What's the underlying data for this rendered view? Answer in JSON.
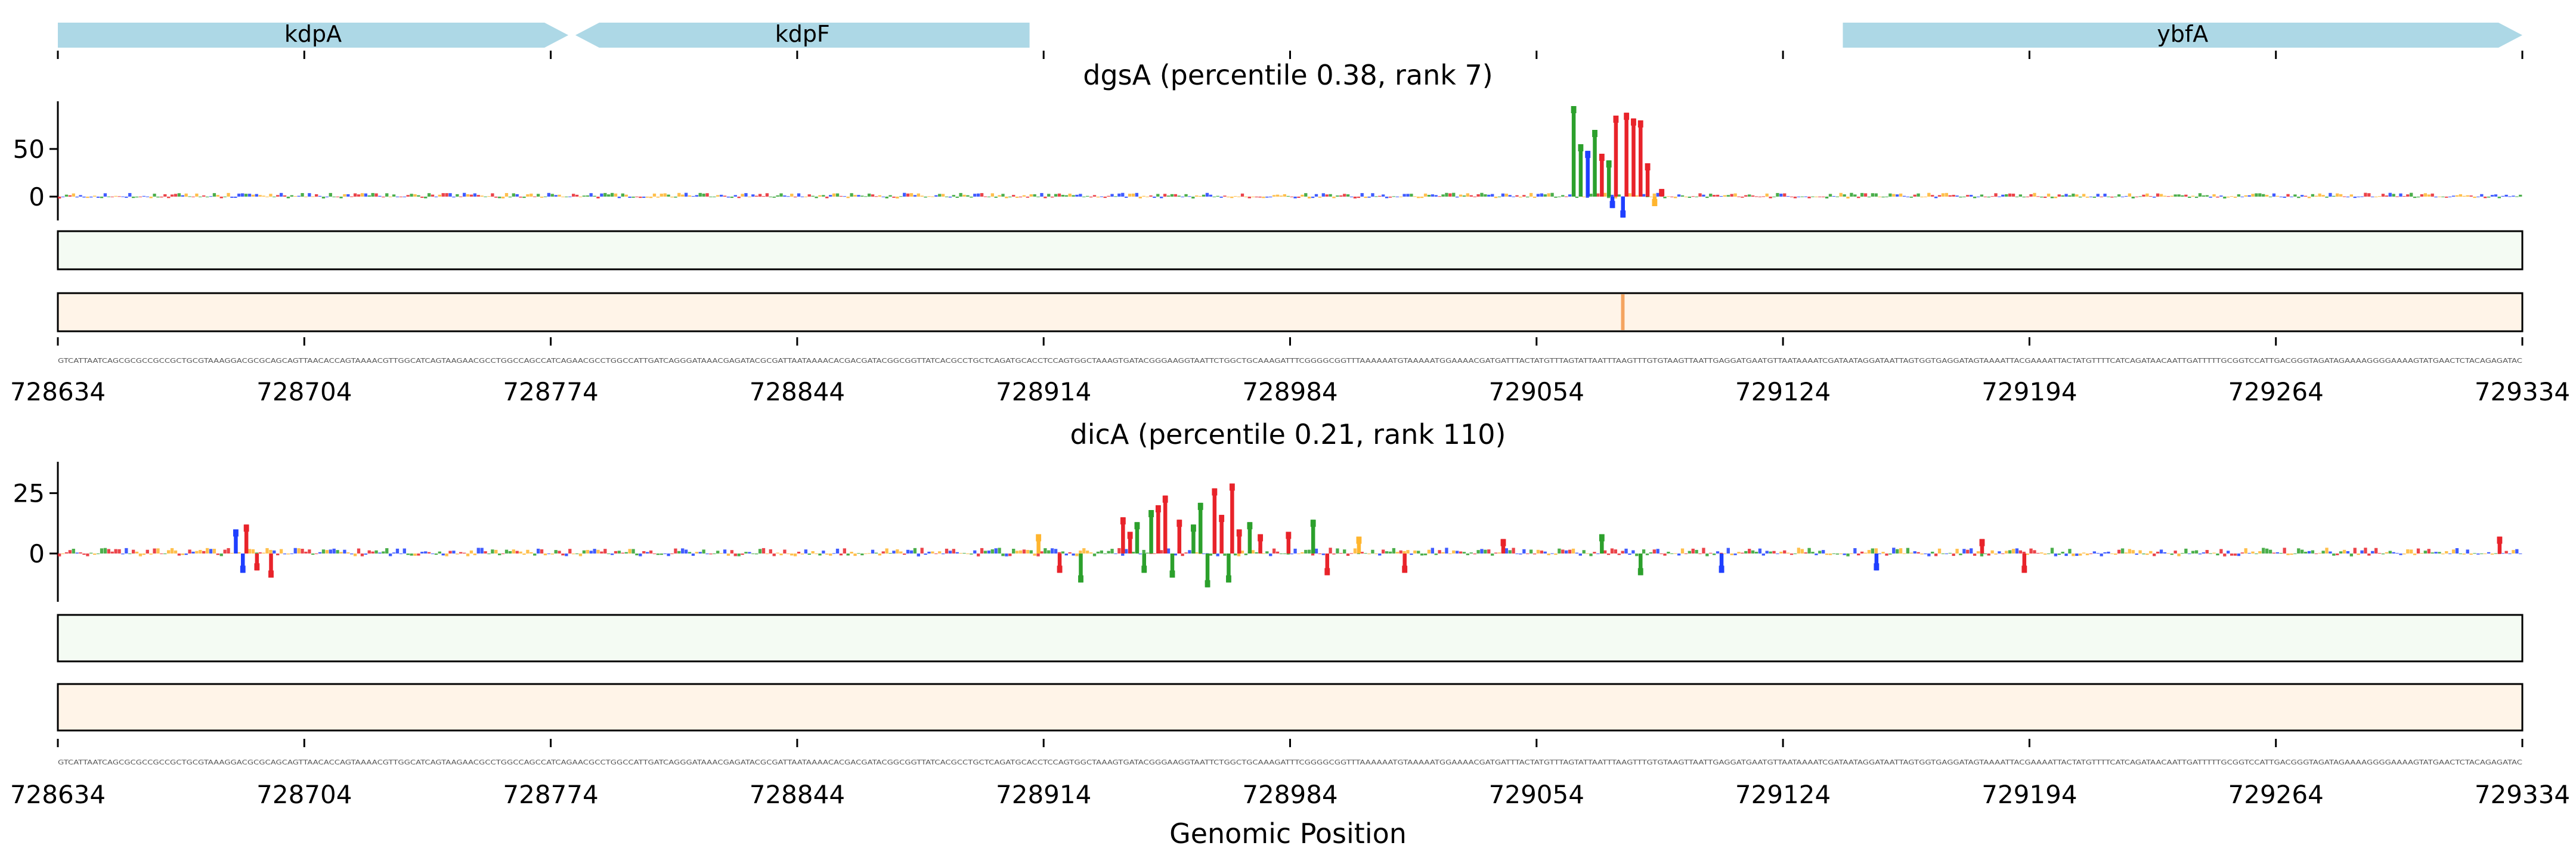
{
  "genes": [
    {
      "name": "kdpA",
      "start": 728634,
      "end": 728779,
      "strand": "+"
    },
    {
      "name": "kdpF",
      "start": 728781,
      "end": 728910,
      "strand": "-"
    },
    {
      "name": "ybfA",
      "start": 729141,
      "end": 729334,
      "strand": "+"
    }
  ],
  "gene_track_ticks": [
    728634,
    728704,
    728774,
    728844,
    728914,
    728984,
    729054,
    729124,
    729194,
    729264,
    729334
  ],
  "xlabel": "Genomic Position",
  "colors": {
    "gene": "#add8e6",
    "base_A": "#2ca02c",
    "base_C": "#1f3fff",
    "base_G": "#ffb52e",
    "base_T": "#e8232a",
    "track1_bg": "#f4fbf3",
    "track2_bg": "#fff4e8",
    "track2_mark": "#f4a460"
  },
  "sequence_strip_text": "GTCATTAATCAGCGCGCCGCCGCTGCGTAAAGGACGCGCAGCAGTTAACACCAGTAAAACGTTGGCATCAGTAAGAACGCCTGGCCAGCCATCAGAACGCCTGGCCATTGATCAGGGATAAACGAGATACGCGATTAATAAAACACGACGATACGGCGGTTATCACGCCTGCTCAGATGCACCTCCAGTGGCTAAAGTGATACGGGAAGGTAATTCTGGCTGCAAAGATTTCGGGGCGGTTTAAAAAATGTAAAAATGGAAAACGATGATTTACTATGTTTAGTATTAATTTAAGTTTGTGTAAGTTAATTGAGGATGAATGTTAATAAAATCGATAATAGGATAATTAGTGGTGAGGATAGTAAAATTACGAAAATTACTATGTTTTCATCAGATAACAATTGATTTTTGCGGTCCATTGACGGGTAGATAGAAAAGGGGAAAAGTATGAACTCTACAGAGATAC",
  "chart_data": [
    {
      "type": "logo",
      "title": "dgsA (percentile 0.38, rank 7)",
      "xlabel": "Genomic Position",
      "xlim": [
        728634,
        729334
      ],
      "ylim": [
        -25,
        100
      ],
      "yticks": [
        0,
        50
      ],
      "xticks": [
        728634,
        728704,
        728774,
        728844,
        728914,
        728984,
        729054,
        729124,
        729194,
        729264,
        729334
      ],
      "peaks": [
        {
          "pos": 729064,
          "value": 95,
          "base": "A"
        },
        {
          "pos": 729066,
          "value": 55,
          "base": "A"
        },
        {
          "pos": 729068,
          "value": 48,
          "base": "C"
        },
        {
          "pos": 729070,
          "value": 70,
          "base": "A"
        },
        {
          "pos": 729072,
          "value": 45,
          "base": "T"
        },
        {
          "pos": 729074,
          "value": 38,
          "base": "A"
        },
        {
          "pos": 729075,
          "value": -12,
          "base": "C"
        },
        {
          "pos": 729076,
          "value": 85,
          "base": "T"
        },
        {
          "pos": 729078,
          "value": -22,
          "base": "C"
        },
        {
          "pos": 729079,
          "value": 88,
          "base": "T"
        },
        {
          "pos": 729081,
          "value": 82,
          "base": "T"
        },
        {
          "pos": 729083,
          "value": 80,
          "base": "T"
        },
        {
          "pos": 729085,
          "value": 35,
          "base": "T"
        },
        {
          "pos": 729087,
          "value": -10,
          "base": "G"
        },
        {
          "pos": 729089,
          "value": 8,
          "base": "T"
        }
      ],
      "background_amplitude": 5,
      "track2_marks": [
        {
          "pos": 729078,
          "intensity": 1.0
        }
      ]
    },
    {
      "type": "logo",
      "title": "dicA (percentile 0.21, rank 110)",
      "xlabel": "Genomic Position",
      "xlim": [
        728634,
        729334
      ],
      "ylim": [
        -20,
        38
      ],
      "yticks": [
        0,
        25
      ],
      "xticks": [
        728634,
        728704,
        728774,
        728844,
        728914,
        728984,
        729054,
        729124,
        729194,
        729264,
        729334
      ],
      "peaks": [
        {
          "pos": 728684,
          "value": 10,
          "base": "C"
        },
        {
          "pos": 728686,
          "value": -8,
          "base": "C"
        },
        {
          "pos": 728687,
          "value": 12,
          "base": "T"
        },
        {
          "pos": 728690,
          "value": -7,
          "base": "T"
        },
        {
          "pos": 728694,
          "value": -10,
          "base": "T"
        },
        {
          "pos": 728912,
          "value": 8,
          "base": "G"
        },
        {
          "pos": 728918,
          "value": -8,
          "base": "T"
        },
        {
          "pos": 728924,
          "value": -12,
          "base": "A"
        },
        {
          "pos": 728936,
          "value": 15,
          "base": "T"
        },
        {
          "pos": 728938,
          "value": 9,
          "base": "T"
        },
        {
          "pos": 728940,
          "value": 13,
          "base": "A"
        },
        {
          "pos": 728942,
          "value": -8,
          "base": "A"
        },
        {
          "pos": 728944,
          "value": 18,
          "base": "A"
        },
        {
          "pos": 728946,
          "value": 20,
          "base": "T"
        },
        {
          "pos": 728948,
          "value": 24,
          "base": "T"
        },
        {
          "pos": 728950,
          "value": -10,
          "base": "A"
        },
        {
          "pos": 728952,
          "value": 14,
          "base": "T"
        },
        {
          "pos": 728956,
          "value": 12,
          "base": "A"
        },
        {
          "pos": 728958,
          "value": 21,
          "base": "A"
        },
        {
          "pos": 728960,
          "value": -14,
          "base": "A"
        },
        {
          "pos": 728962,
          "value": 27,
          "base": "T"
        },
        {
          "pos": 728964,
          "value": 16,
          "base": "T"
        },
        {
          "pos": 728966,
          "value": -12,
          "base": "A"
        },
        {
          "pos": 728967,
          "value": 29,
          "base": "T"
        },
        {
          "pos": 728969,
          "value": 10,
          "base": "T"
        },
        {
          "pos": 728972,
          "value": 13,
          "base": "A"
        },
        {
          "pos": 728975,
          "value": 8,
          "base": "T"
        },
        {
          "pos": 728983,
          "value": 9,
          "base": "T"
        },
        {
          "pos": 728990,
          "value": 14,
          "base": "A"
        },
        {
          "pos": 728994,
          "value": -9,
          "base": "T"
        },
        {
          "pos": 729003,
          "value": 7,
          "base": "G"
        },
        {
          "pos": 729016,
          "value": -8,
          "base": "T"
        },
        {
          "pos": 729044,
          "value": 6,
          "base": "T"
        },
        {
          "pos": 729072,
          "value": 8,
          "base": "A"
        },
        {
          "pos": 729083,
          "value": -9,
          "base": "A"
        },
        {
          "pos": 729106,
          "value": -8,
          "base": "C"
        },
        {
          "pos": 729150,
          "value": -7,
          "base": "C"
        },
        {
          "pos": 729180,
          "value": 6,
          "base": "T"
        },
        {
          "pos": 729192,
          "value": -8,
          "base": "T"
        },
        {
          "pos": 729327,
          "value": 7,
          "base": "T"
        }
      ],
      "background_amplitude": 3,
      "track2_marks": []
    }
  ]
}
